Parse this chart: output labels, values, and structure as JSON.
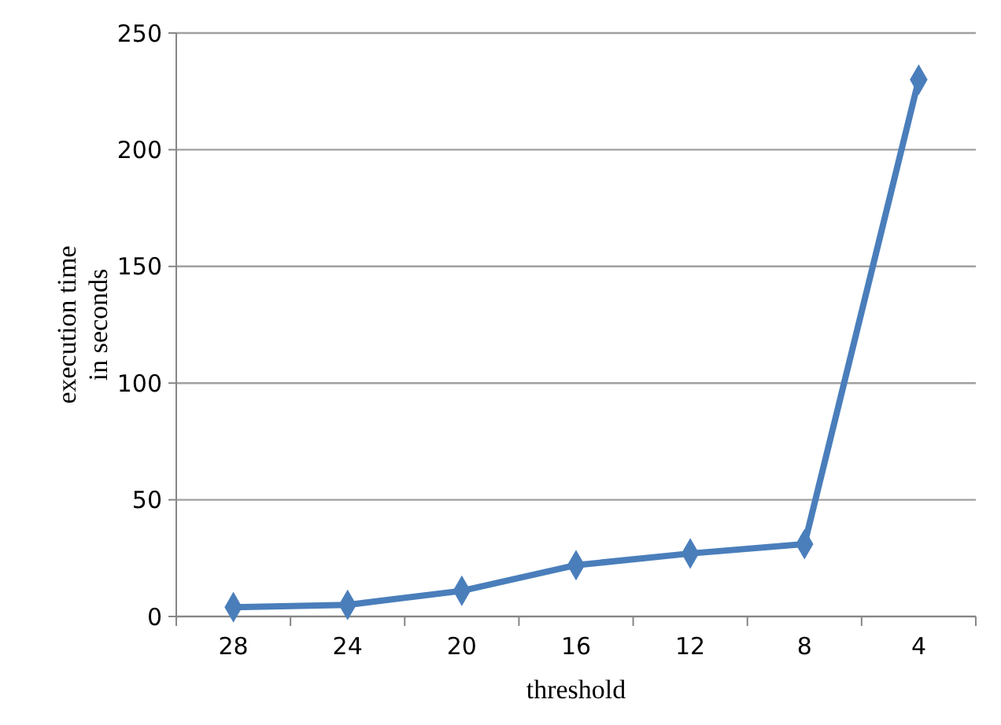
{
  "chart_data": {
    "type": "line",
    "xlabel": "threshold",
    "ylabel": "execution time in seconds",
    "categories": [
      "28",
      "24",
      "20",
      "16",
      "12",
      "8",
      "4"
    ],
    "series": [
      {
        "color": "#4a7ebb",
        "values": [
          4,
          5,
          11,
          22,
          27,
          31,
          230
        ]
      }
    ],
    "ylim": [
      0,
      250
    ],
    "yticks": [
      0,
      50,
      100,
      150,
      200,
      250
    ],
    "grid": "y",
    "marker": "diamond"
  }
}
